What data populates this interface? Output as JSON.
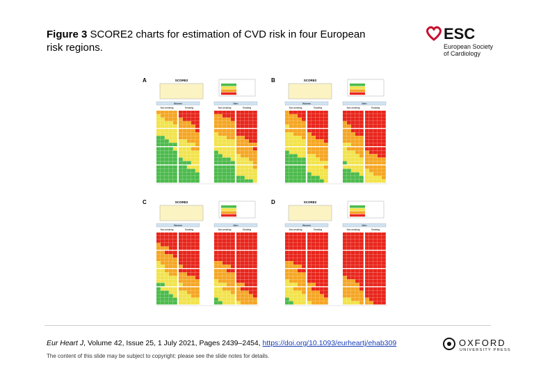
{
  "header": {
    "figure_label": "Figure 3",
    "title": "SCORE2 charts for estimation of CVD risk in four European risk regions."
  },
  "logo": {
    "name": "ESC",
    "subtitle_lines": [
      "European Society",
      "of Cardiology"
    ]
  },
  "figure": {
    "panels": [
      {
        "label": "A",
        "title": "SCORE2",
        "groups": [
          "Women",
          "Men"
        ],
        "columns": [
          "Non-smoking",
          "Smoking"
        ]
      },
      {
        "label": "B",
        "title": "SCORE2",
        "groups": [
          "Women",
          "Men"
        ],
        "columns": [
          "Non-smoking",
          "Smoking"
        ]
      },
      {
        "label": "C",
        "title": "SCORE2",
        "groups": [
          "Women",
          "Men"
        ],
        "columns": [
          "Non-smoking",
          "Smoking"
        ]
      },
      {
        "label": "D",
        "title": "SCORE2",
        "groups": [
          "Women",
          "Men"
        ],
        "columns": [
          "Non-smoking",
          "Smoking"
        ]
      }
    ]
  },
  "citation": {
    "journal": "Eur Heart J",
    "details": ", Volume 42, Issue 25, 1 July 2021, Pages 2439–2454, ",
    "doi": "https://doi.org/10.1093/eurheartj/ehab309"
  },
  "footer": "The content of this slide may be subject to copyright: please see the slide notes for details.",
  "publisher": {
    "name": "OXFORD",
    "subtitle": "UNIVERSITY PRESS"
  }
}
